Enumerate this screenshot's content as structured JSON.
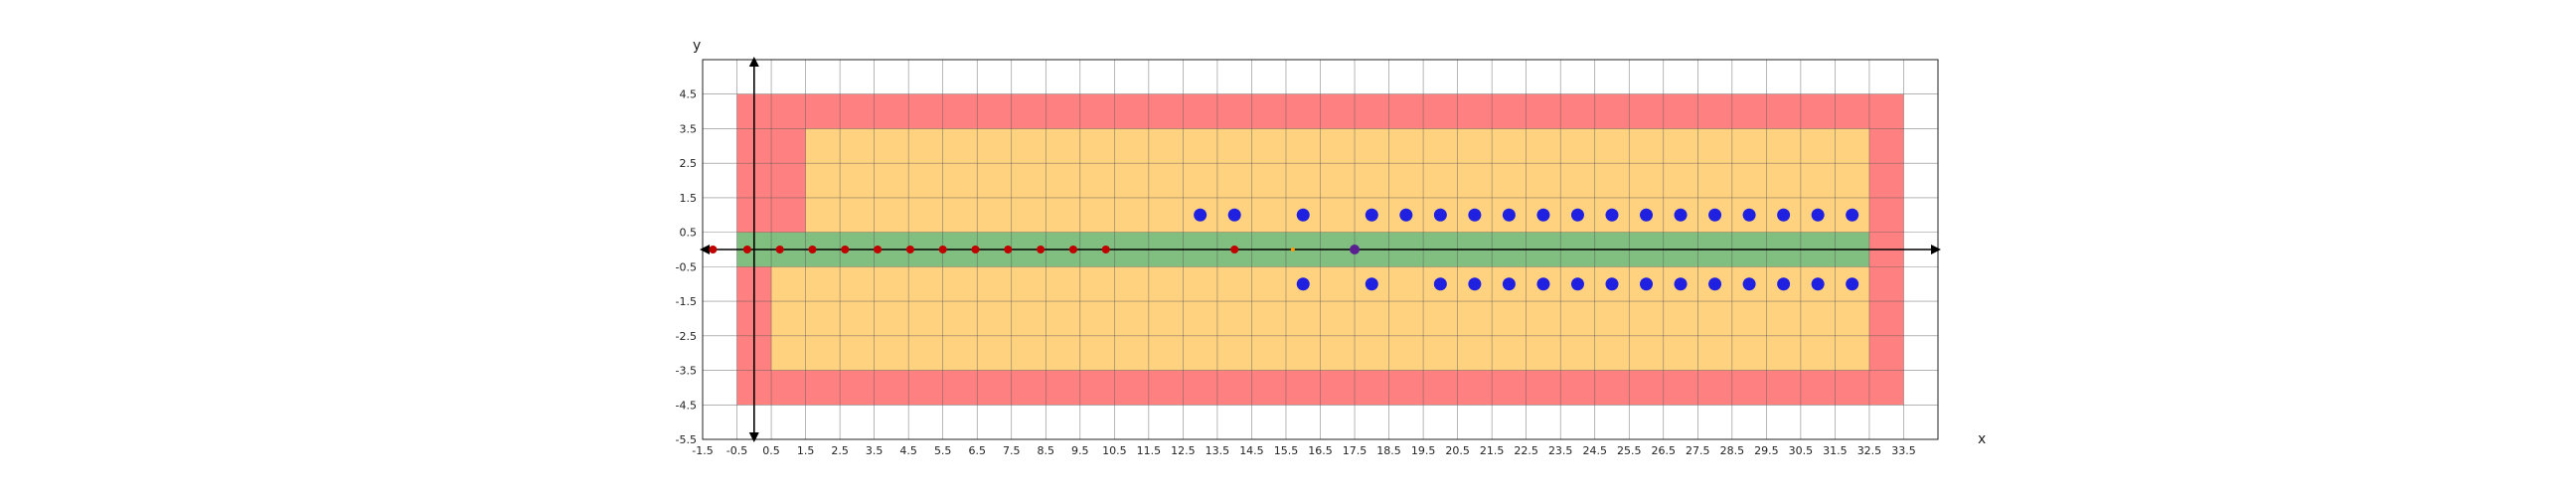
{
  "chart_data": {
    "type": "scatter",
    "title": "",
    "xlabel": "x",
    "ylabel": "y",
    "xlim": [
      -1.5,
      34.5
    ],
    "ylim": [
      -5.5,
      5.5
    ],
    "grid": true,
    "xticks": [
      -1.5,
      -0.5,
      0.5,
      1.5,
      2.5,
      3.5,
      4.5,
      5.5,
      6.5,
      7.5,
      8.5,
      9.5,
      10.5,
      11.5,
      12.5,
      13.5,
      14.5,
      15.5,
      16.5,
      17.5,
      18.5,
      19.5,
      20.5,
      21.5,
      22.5,
      23.5,
      24.5,
      25.5,
      26.5,
      27.5,
      28.5,
      29.5,
      30.5,
      31.5,
      32.5,
      33.5
    ],
    "xtick_labels": [
      "-1.5",
      "-0.5",
      "0.5",
      "1.5",
      "2.5",
      "3.5",
      "4.5",
      "5.5",
      "6.5",
      "7.5",
      "8.5",
      "9.5",
      "10.5",
      "11.5",
      "12.5",
      "13.5",
      "14.5",
      "15.5",
      "16.5",
      "17.5",
      "18.5",
      "19.5",
      "20.5",
      "21.5",
      "22.5",
      "23.5",
      "24.5",
      "25.5",
      "26.5",
      "27.5",
      "28.5",
      "29.5",
      "30.5",
      "31.5",
      "32.5",
      "33.5"
    ],
    "yticks": [
      4.5,
      3.5,
      2.5,
      1.5,
      0.5,
      -0.5,
      -1.5,
      -2.5,
      -3.5,
      -4.5,
      -5.5
    ],
    "ytick_labels": [
      "4.5",
      "3.5",
      "2.5",
      "1.5",
      "0.5",
      "-0.5",
      "-1.5",
      "-2.5",
      "-3.5",
      "-4.5",
      "-5.5"
    ],
    "regions": [
      {
        "name": "outer-red-region",
        "x": [
          -0.5,
          33.5
        ],
        "y": [
          -4.5,
          4.5
        ],
        "color": "#ff8080"
      },
      {
        "name": "orange-upper-region",
        "x": [
          1.5,
          32.5
        ],
        "y": [
          0.5,
          3.5
        ],
        "color": "#ffd280"
      },
      {
        "name": "orange-lower-region",
        "x": [
          0.5,
          32.5
        ],
        "y": [
          -3.5,
          -0.5
        ],
        "color": "#ffd280"
      },
      {
        "name": "green-lane-region",
        "x": [
          -0.5,
          32.5
        ],
        "y": [
          -0.5,
          0.5
        ],
        "color": "#80bf80"
      }
    ],
    "series": [
      {
        "name": "red-points",
        "color": "#c00000",
        "radius": 4,
        "points": [
          [
            -1.2,
            0
          ],
          [
            -0.2,
            0
          ],
          [
            0.75,
            0
          ],
          [
            1.7,
            0
          ],
          [
            2.65,
            0
          ],
          [
            3.6,
            0
          ],
          [
            4.55,
            0
          ],
          [
            5.5,
            0
          ],
          [
            6.45,
            0
          ],
          [
            7.4,
            0
          ],
          [
            8.35,
            0
          ],
          [
            9.3,
            0
          ],
          [
            10.25,
            0
          ],
          [
            14,
            0
          ]
        ]
      },
      {
        "name": "blue-points",
        "color": "#2020e0",
        "radius": 6.5,
        "points": [
          [
            13,
            1
          ],
          [
            14,
            1
          ],
          [
            16,
            1
          ],
          [
            18,
            1
          ],
          [
            19,
            1
          ],
          [
            20,
            1
          ],
          [
            21,
            1
          ],
          [
            22,
            1
          ],
          [
            23,
            1
          ],
          [
            24,
            1
          ],
          [
            25,
            1
          ],
          [
            26,
            1
          ],
          [
            27,
            1
          ],
          [
            28,
            1
          ],
          [
            29,
            1
          ],
          [
            30,
            1
          ],
          [
            31,
            1
          ],
          [
            32,
            1
          ],
          [
            16,
            -1
          ],
          [
            18,
            -1
          ],
          [
            20,
            -1
          ],
          [
            21,
            -1
          ],
          [
            22,
            -1
          ],
          [
            23,
            -1
          ],
          [
            24,
            -1
          ],
          [
            25,
            -1
          ],
          [
            26,
            -1
          ],
          [
            27,
            -1
          ],
          [
            28,
            -1
          ],
          [
            29,
            -1
          ],
          [
            30,
            -1
          ],
          [
            31,
            -1
          ],
          [
            32,
            -1
          ]
        ]
      },
      {
        "name": "purple-point",
        "color": "#5a2090",
        "radius": 5,
        "points": [
          [
            17.5,
            0
          ]
        ]
      },
      {
        "name": "orange-marker",
        "color": "#ff9900",
        "radius": 2,
        "points": [
          [
            15.7,
            0
          ]
        ]
      }
    ]
  }
}
